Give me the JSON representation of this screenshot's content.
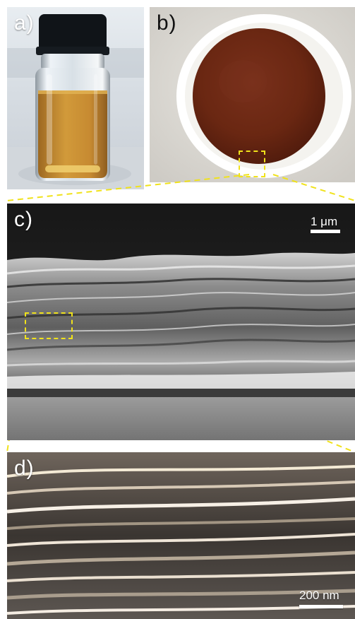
{
  "figure": {
    "panels": {
      "a": {
        "label": "a)"
      },
      "b": {
        "label": "b)"
      },
      "c": {
        "label": "c)",
        "scale_bar_label": "1 μm"
      },
      "d": {
        "label": "d)",
        "scale_bar_label": "200 nm"
      }
    },
    "colors": {
      "highlight": "#f0e21b",
      "vial_liquid": "#c88b2b",
      "membrane": "#6a2a12",
      "sem_gray": "#8c8c8c"
    }
  }
}
